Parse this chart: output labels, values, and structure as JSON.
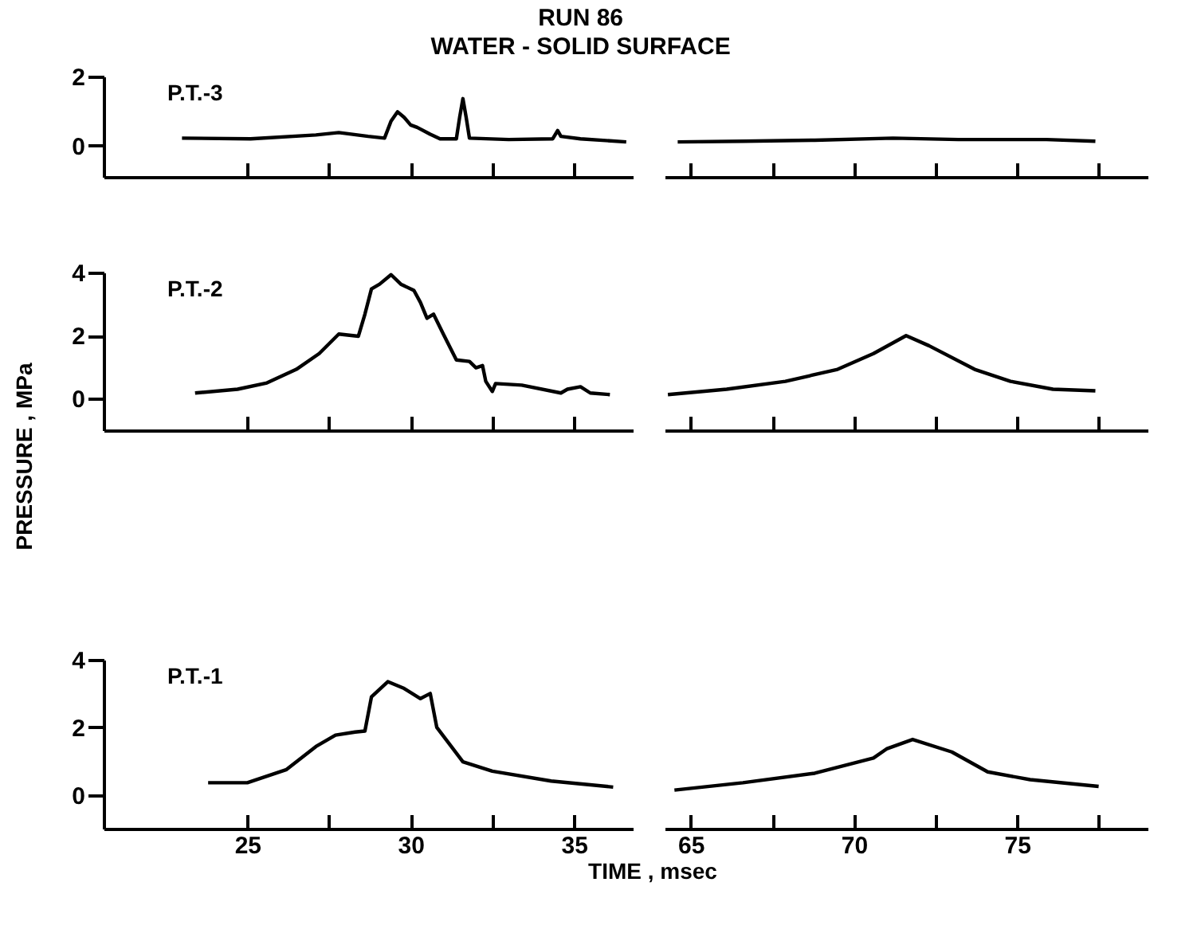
{
  "chart_data": [
    {
      "type": "line",
      "title": "RUN 86",
      "subtitle": "WATER - SOLID SURFACE",
      "annotations": [
        "P.T.-3"
      ],
      "xlim": [
        20.6,
        36.8
      ],
      "ylim": [
        -0.9,
        2
      ],
      "xticks": [
        25,
        {
          "value": 27.5,
          "label": null
        },
        30,
        {
          "value": 32.5,
          "label": null
        },
        35
      ],
      "yticks": [
        0,
        2
      ],
      "tick_labels": "y",
      "series": [
        {
          "color": "#000000",
          "x": [
            23.0,
            25.1,
            27.1,
            27.8,
            28.7,
            29.2,
            29.4,
            29.6,
            29.8,
            30.0,
            30.2,
            30.6,
            30.9,
            31.4,
            31.5,
            31.6,
            31.7,
            31.8,
            33.0,
            34.35,
            34.5,
            34.6,
            35.2,
            36.6
          ],
          "values": [
            0.22,
            0.2,
            0.31,
            0.38,
            0.27,
            0.22,
            0.71,
            0.98,
            0.82,
            0.6,
            0.53,
            0.33,
            0.2,
            0.2,
            0.82,
            1.36,
            0.82,
            0.22,
            0.18,
            0.2,
            0.44,
            0.27,
            0.2,
            0.11
          ]
        }
      ]
    },
    {
      "type": "line",
      "xlim": [
        64.2,
        79
      ],
      "ylim": [
        -0.9,
        2
      ],
      "xticks": [
        65,
        {
          "value": 67.5,
          "label": null
        },
        70,
        {
          "value": 72.5,
          "label": null
        },
        75,
        {
          "value": 77.5,
          "label": null
        }
      ],
      "yticks": [
        0,
        2
      ],
      "tick_labels": false,
      "series": [
        {
          "color": "#000000",
          "x": [
            64.6,
            66.6,
            68.8,
            71.2,
            73.2,
            75.9,
            77.4
          ],
          "values": [
            0.11,
            0.13,
            0.16,
            0.22,
            0.18,
            0.18,
            0.13
          ]
        }
      ]
    },
    {
      "type": "line",
      "ylabel": "PRESSURE , MPa",
      "annotations": [
        "P.T.-2"
      ],
      "xlim": [
        20.6,
        36.8
      ],
      "ylim": [
        -1,
        4
      ],
      "xticks": [
        25,
        {
          "value": 27.5,
          "label": null
        },
        30,
        {
          "value": 32.5,
          "label": null
        },
        35
      ],
      "yticks": [
        0,
        2,
        4
      ],
      "tick_labels": "y",
      "series": [
        {
          "color": "#000000",
          "x": [
            23.4,
            24.7,
            25.6,
            26.5,
            27.2,
            27.8,
            28.4,
            28.6,
            28.8,
            29.05,
            29.4,
            29.7,
            30.1,
            30.3,
            30.5,
            30.7,
            31.0,
            31.4,
            31.8,
            32.0,
            32.2,
            32.3,
            32.5,
            32.6,
            33.4,
            34.6,
            34.8,
            35.2,
            35.5,
            36.1
          ],
          "values": [
            0.18,
            0.3,
            0.5,
            0.93,
            1.43,
            2.05,
            1.98,
            2.68,
            3.48,
            3.63,
            3.93,
            3.63,
            3.43,
            3.05,
            2.55,
            2.68,
            2.05,
            1.23,
            1.18,
            0.98,
            1.05,
            0.55,
            0.23,
            0.48,
            0.43,
            0.18,
            0.3,
            0.38,
            0.18,
            0.13
          ]
        }
      ]
    },
    {
      "type": "line",
      "xlim": [
        64.2,
        79
      ],
      "ylim": [
        -1,
        4
      ],
      "xticks": [
        65,
        {
          "value": 67.5,
          "label": null
        },
        70,
        {
          "value": 72.5,
          "label": null
        },
        75,
        {
          "value": 77.5,
          "label": null
        }
      ],
      "yticks": [
        0,
        2,
        4
      ],
      "tick_labels": false,
      "series": [
        {
          "color": "#000000",
          "x": [
            64.3,
            66.1,
            67.9,
            69.5,
            70.6,
            71.6,
            72.3,
            73.7,
            74.8,
            76.1,
            77.4
          ],
          "values": [
            0.13,
            0.3,
            0.55,
            0.93,
            1.43,
            2.0,
            1.68,
            0.93,
            0.55,
            0.3,
            0.25
          ]
        }
      ]
    },
    {
      "type": "line",
      "xlabel": "TIME , msec",
      "annotations": [
        "P.T.-1"
      ],
      "xlim": [
        20.6,
        36.8
      ],
      "ylim": [
        -1,
        4
      ],
      "xticks": [
        25,
        {
          "value": 27.5,
          "label": null
        },
        30,
        {
          "value": 32.5,
          "label": null
        },
        35
      ],
      "yticks": [
        0,
        2,
        4
      ],
      "series": [
        {
          "color": "#000000",
          "x": [
            23.8,
            25.0,
            26.2,
            27.1,
            27.7,
            28.3,
            28.6,
            28.8,
            29.3,
            29.8,
            30.3,
            30.6,
            30.8,
            31.6,
            32.5,
            34.3,
            36.2
          ],
          "values": [
            0.36,
            0.36,
            0.75,
            1.43,
            1.77,
            1.86,
            1.89,
            2.9,
            3.35,
            3.15,
            2.85,
            3.0,
            2.0,
            0.98,
            0.7,
            0.41,
            0.23
          ]
        }
      ]
    },
    {
      "type": "line",
      "xlim": [
        64.2,
        79
      ],
      "ylim": [
        -1,
        4
      ],
      "xticks": [
        65,
        {
          "value": 67.5,
          "label": null
        },
        70,
        {
          "value": 72.5,
          "label": null
        },
        75,
        {
          "value": 77.5,
          "label": null
        }
      ],
      "yticks": [
        0,
        2,
        4
      ],
      "tick_labels": "x",
      "series": [
        {
          "color": "#000000",
          "x": [
            64.5,
            66.6,
            68.8,
            70.6,
            71.0,
            71.8,
            73.0,
            74.1,
            75.4,
            77.5
          ],
          "values": [
            0.14,
            0.36,
            0.64,
            1.09,
            1.36,
            1.64,
            1.27,
            0.68,
            0.45,
            0.25
          ]
        }
      ]
    }
  ]
}
